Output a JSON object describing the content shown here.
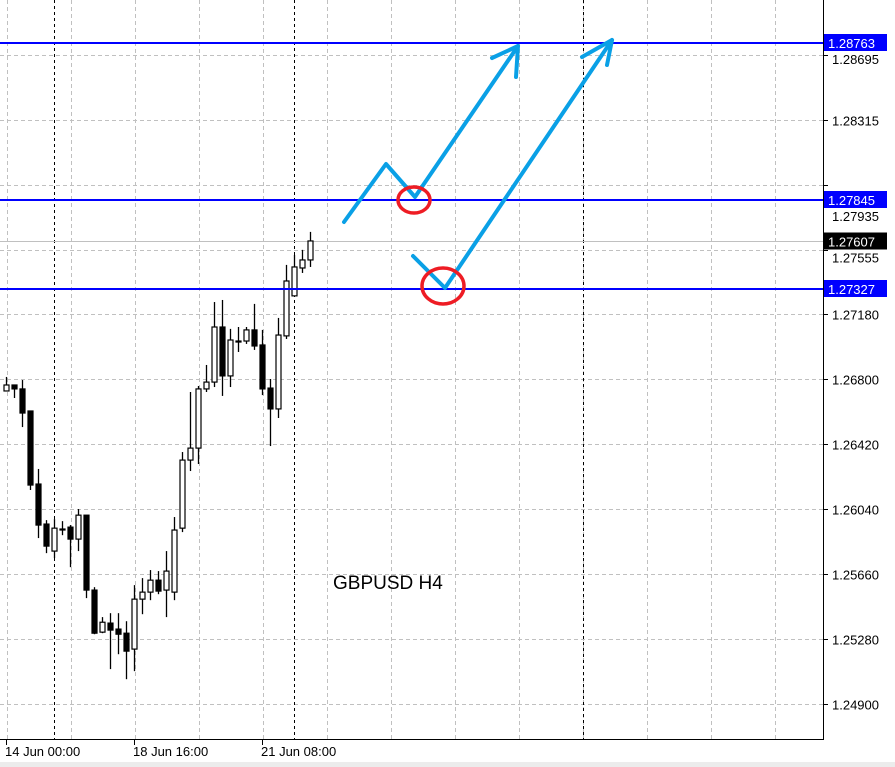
{
  "chart_data": {
    "type": "candlestick",
    "title": "GBPUSD H4",
    "symbol": "GBPUSD",
    "timeframe": "H4",
    "ylim": [
      1.247,
      1.29
    ],
    "y_ticks": [
      "1.28695",
      "1.28315",
      "1.27935",
      "1.27555",
      "1.27180",
      "1.26800",
      "1.26420",
      "1.26040",
      "1.25660",
      "1.25280",
      "1.24900"
    ],
    "x_tick_labels": [
      "14 Jun 00:00",
      "18 Jun 16:00",
      "21 Jun 08:00"
    ],
    "grid": true,
    "colors": {
      "bull_body": "#ffffff",
      "bear_body": "#000000",
      "candle_outline": "#000000",
      "level_line": "#0000ff",
      "level_label_bg": "#0000ff",
      "current_price_bg": "#000000",
      "arrow": "#0aa0e6",
      "circle": "#ee1c24",
      "grid": "#c0c0c0"
    },
    "current_price": "1.27607",
    "levels": [
      "1.28763",
      "1.27845",
      "1.27327"
    ],
    "candles": [
      {
        "o": 1.2673,
        "h": 1.26812,
        "l": 1.2673,
        "c": 1.26765
      },
      {
        "o": 1.26765,
        "h": 1.26765,
        "l": 1.26689,
        "c": 1.26742
      },
      {
        "o": 1.26742,
        "h": 1.26794,
        "l": 1.26519,
        "c": 1.26601
      },
      {
        "o": 1.26613,
        "h": 1.26613,
        "l": 1.26151,
        "c": 1.2618
      },
      {
        "o": 1.26186,
        "h": 1.26274,
        "l": 1.2587,
        "c": 1.25946
      },
      {
        "o": 1.25952,
        "h": 1.25975,
        "l": 1.25782,
        "c": 1.25823
      },
      {
        "o": 1.25794,
        "h": 1.25981,
        "l": 1.25753,
        "c": 1.25928
      },
      {
        "o": 1.25923,
        "h": 1.25969,
        "l": 1.25887,
        "c": 1.25923
      },
      {
        "o": 1.25934,
        "h": 1.25946,
        "l": 1.257,
        "c": 1.25864
      },
      {
        "o": 1.25864,
        "h": 1.2604,
        "l": 1.25794,
        "c": 1.26004
      },
      {
        "o": 1.26004,
        "h": 1.26004,
        "l": 1.25519,
        "c": 1.25566
      },
      {
        "o": 1.25566,
        "h": 1.25583,
        "l": 1.25308,
        "c": 1.25314
      },
      {
        "o": 1.2532,
        "h": 1.25408,
        "l": 1.25314,
        "c": 1.25378
      },
      {
        "o": 1.25373,
        "h": 1.25431,
        "l": 1.25104,
        "c": 1.25332
      },
      {
        "o": 1.25338,
        "h": 1.25431,
        "l": 1.25191,
        "c": 1.25308
      },
      {
        "o": 1.25314,
        "h": 1.25384,
        "l": 1.25045,
        "c": 1.25209
      },
      {
        "o": 1.25221,
        "h": 1.25595,
        "l": 1.25092,
        "c": 1.25513
      },
      {
        "o": 1.25513,
        "h": 1.25636,
        "l": 1.25425,
        "c": 1.25554
      },
      {
        "o": 1.25554,
        "h": 1.25683,
        "l": 1.25507,
        "c": 1.25624
      },
      {
        "o": 1.25624,
        "h": 1.25677,
        "l": 1.25542,
        "c": 1.2556
      },
      {
        "o": 1.25566,
        "h": 1.25794,
        "l": 1.25408,
        "c": 1.25677
      },
      {
        "o": 1.25554,
        "h": 1.25993,
        "l": 1.25507,
        "c": 1.25917
      },
      {
        "o": 1.25928,
        "h": 1.26373,
        "l": 1.25905,
        "c": 1.26326
      },
      {
        "o": 1.26326,
        "h": 1.26724,
        "l": 1.26262,
        "c": 1.26396
      },
      {
        "o": 1.26396,
        "h": 1.26759,
        "l": 1.26303,
        "c": 1.26742
      },
      {
        "o": 1.26742,
        "h": 1.26882,
        "l": 1.26724,
        "c": 1.26782
      },
      {
        "o": 1.26782,
        "h": 1.2725,
        "l": 1.26753,
        "c": 1.27104
      },
      {
        "o": 1.27104,
        "h": 1.27262,
        "l": 1.26701,
        "c": 1.26818
      },
      {
        "o": 1.26818,
        "h": 1.27093,
        "l": 1.26753,
        "c": 1.27028
      },
      {
        "o": 1.27022,
        "h": 1.27104,
        "l": 1.26958,
        "c": 1.27022
      },
      {
        "o": 1.27022,
        "h": 1.27104,
        "l": 1.27005,
        "c": 1.27087
      },
      {
        "o": 1.27087,
        "h": 1.27239,
        "l": 1.2697,
        "c": 1.26993
      },
      {
        "o": 1.26999,
        "h": 1.27087,
        "l": 1.26706,
        "c": 1.26742
      },
      {
        "o": 1.26747,
        "h": 1.268,
        "l": 1.26408,
        "c": 1.26625
      },
      {
        "o": 1.26625,
        "h": 1.27157,
        "l": 1.26572,
        "c": 1.27057
      },
      {
        "o": 1.27052,
        "h": 1.27467,
        "l": 1.27034,
        "c": 1.27373
      },
      {
        "o": 1.27286,
        "h": 1.27525,
        "l": 1.27286,
        "c": 1.27455
      },
      {
        "o": 1.27449,
        "h": 1.27555,
        "l": 1.2742,
        "c": 1.27496
      },
      {
        "o": 1.27496,
        "h": 1.2766,
        "l": 1.27455,
        "c": 1.27607
      }
    ]
  }
}
